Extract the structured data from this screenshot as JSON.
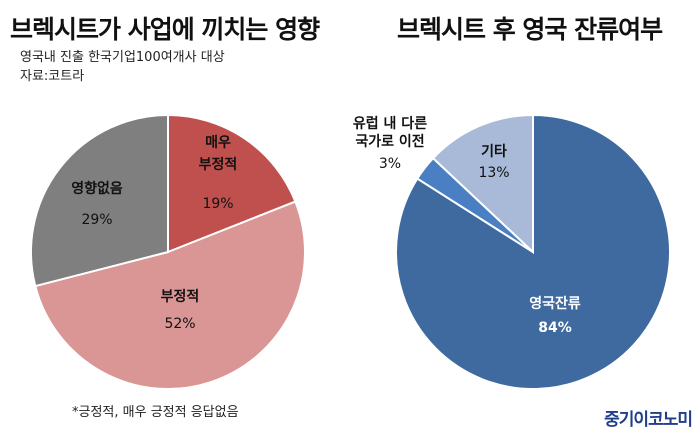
{
  "titles": {
    "left": "브렉시트가 사업에 끼치는 영향",
    "right": "브렉시트 후 영국 잔류여부"
  },
  "notes": {
    "line1": "영국내 진출 한국기업100여개사 대상",
    "line2": "자료:코트라",
    "footnote": "*긍정적, 매우 긍정적 응답없음"
  },
  "brand": "중기이코노미",
  "chart_data": [
    {
      "type": "pie",
      "title": "브렉시트가 사업에 끼치는 영향",
      "slices": [
        {
          "label": "매우 부정적",
          "label_lines": [
            "매우",
            "부정적"
          ],
          "value": 19,
          "pct": "19%",
          "color": "#c0504d"
        },
        {
          "label": "부정적",
          "label_lines": [
            "부정적"
          ],
          "value": 52,
          "pct": "52%",
          "color": "#d99694"
        },
        {
          "label": "영향없음",
          "label_lines": [
            "영향없음"
          ],
          "value": 29,
          "pct": "29%",
          "color": "#7f7f7f"
        }
      ]
    },
    {
      "type": "pie",
      "title": "브렉시트 후 영국 잔류여부",
      "slices": [
        {
          "label": "영국잔류",
          "label_lines": [
            "영국잔류"
          ],
          "value": 84,
          "pct": "84%",
          "color": "#3e6aa0"
        },
        {
          "label": "유럽 내 다른 국가로 이전",
          "label_lines": [
            "유럽 내 다른",
            "국가로 이전"
          ],
          "value": 3,
          "pct": "3%",
          "color": "#4a7fc4"
        },
        {
          "label": "기타",
          "label_lines": [
            "기타"
          ],
          "value": 13,
          "pct": "13%",
          "color": "#a9bad8"
        }
      ]
    }
  ]
}
